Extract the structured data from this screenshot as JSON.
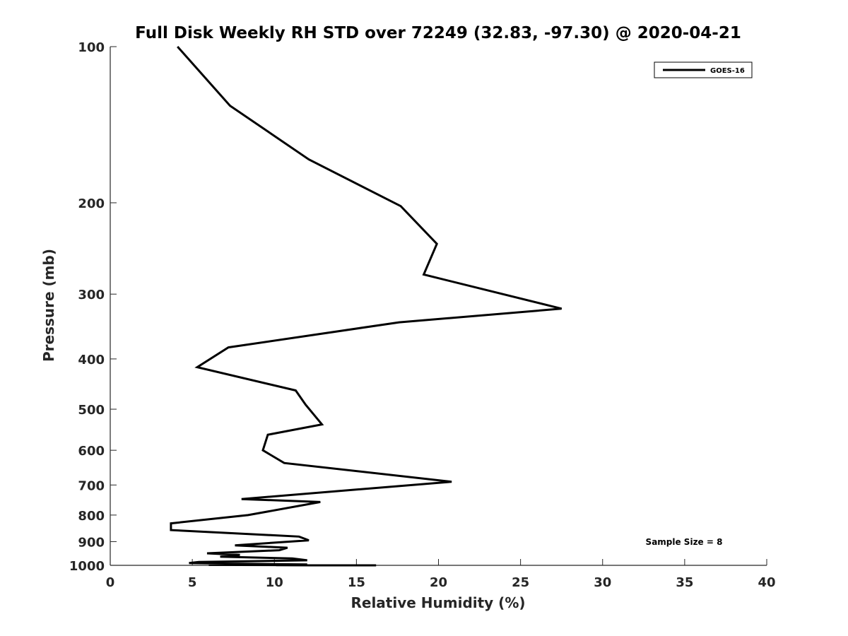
{
  "chart_data": {
    "type": "line",
    "title": "Full Disk Weekly RH STD over 72249 (32.83, -97.30) @ 2020-04-21",
    "xlabel": "Relative Humidity (%)",
    "ylabel": "Pressure (mb)",
    "xlim": [
      0,
      40
    ],
    "ylim": [
      100,
      1000
    ],
    "y_scale": "log",
    "y_reversed": true,
    "x_ticks": [
      "0",
      "5",
      "10",
      "15",
      "20",
      "25",
      "30",
      "35",
      "40"
    ],
    "y_ticks": [
      "100",
      "200",
      "300",
      "400",
      "500",
      "600",
      "700",
      "800",
      "900",
      "1000"
    ],
    "grid": false,
    "legend_position": "top-right",
    "annotation": "Sample Size = 8",
    "series": [
      {
        "name": "GOES-16",
        "color": "#000000",
        "x": [
          4.1,
          7.3,
          12.1,
          17.7,
          19.9,
          19.1,
          27.5,
          17.6,
          7.2,
          5.3,
          11.3,
          11.9,
          12.9,
          9.6,
          9.3,
          10.6,
          20.8,
          8.0,
          12.8,
          8.4,
          3.7,
          3.7,
          11.5,
          12.1,
          7.6,
          10.8,
          10.3,
          5.9,
          7.9,
          6.7,
          11.1,
          12.0,
          5.4,
          4.8,
          7.8,
          12.0,
          6.0,
          11.1,
          11.4,
          10.1,
          10.8,
          12.3,
          16.2
        ],
        "y": [
          100,
          130,
          165,
          203,
          240,
          275,
          320,
          340,
          380,
          415,
          460,
          490,
          535,
          560,
          600,
          635,
          690,
          745,
          755,
          800,
          830,
          855,
          880,
          895,
          915,
          925,
          935,
          948,
          955,
          962,
          970,
          978,
          985,
          990,
          993,
          996,
          998,
          999,
          999.5,
          999.7,
          999.8,
          999.9,
          1000
        ]
      }
    ]
  }
}
